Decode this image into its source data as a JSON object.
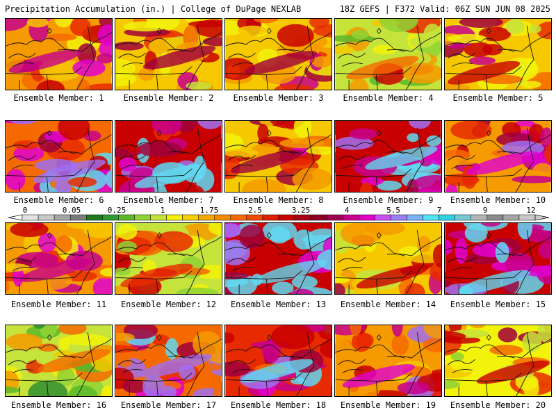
{
  "header": {
    "title": "Precipitation Accumulation (in.) | College of DuPage NEXLAB",
    "run_info": "18Z GEFS | F372 Valid: 06Z SUN JUN 08 2025"
  },
  "panels": [
    {
      "caption": "Ensemble Member: 1",
      "intensity": 0.55
    },
    {
      "caption": "Ensemble Member: 2",
      "intensity": 0.48
    },
    {
      "caption": "Ensemble Member: 3",
      "intensity": 0.5
    },
    {
      "caption": "Ensemble Member: 4",
      "intensity": 0.32
    },
    {
      "caption": "Ensemble Member: 5",
      "intensity": 0.45
    },
    {
      "caption": "Ensemble Member: 6",
      "intensity": 0.7
    },
    {
      "caption": "Ensemble Member: 7",
      "intensity": 0.8
    },
    {
      "caption": "Ensemble Member: 8",
      "intensity": 0.52
    },
    {
      "caption": "Ensemble Member: 9",
      "intensity": 0.82
    },
    {
      "caption": "Ensemble Member: 10",
      "intensity": 0.62
    },
    {
      "caption": "Ensemble Member: 11",
      "intensity": 0.55
    },
    {
      "caption": "Ensemble Member: 12",
      "intensity": 0.35
    },
    {
      "caption": "Ensemble Member: 13",
      "intensity": 0.85
    },
    {
      "caption": "Ensemble Member: 14",
      "intensity": 0.45
    },
    {
      "caption": "Ensemble Member: 15",
      "intensity": 0.88
    },
    {
      "caption": "Ensemble Member: 16",
      "intensity": 0.28
    },
    {
      "caption": "Ensemble Member: 17",
      "intensity": 0.68
    },
    {
      "caption": "Ensemble Member: 18",
      "intensity": 0.75
    },
    {
      "caption": "Ensemble Member: 19",
      "intensity": 0.6
    },
    {
      "caption": "Ensemble Member: 20",
      "intensity": 0.4
    }
  ],
  "colorbar": {
    "tick_labels": [
      "0",
      "0.05",
      "0.25",
      "1",
      "1.75",
      "2.5",
      "3.25",
      "4",
      "5.5",
      "7",
      "9",
      "12"
    ],
    "colors": [
      "#e2e2e2",
      "#c8c8c8",
      "#a6a6a6",
      "#7b7b7b",
      "#1e7a1e",
      "#2f9a2f",
      "#5ab82a",
      "#8fd236",
      "#c5e33a",
      "#f2f20a",
      "#f5d000",
      "#f5a800",
      "#f58a00",
      "#f56a00",
      "#f04a00",
      "#e01e00",
      "#c80000",
      "#a80014",
      "#8c0028",
      "#a00050",
      "#c8008c",
      "#e000c8",
      "#c850f0",
      "#9a80f5",
      "#78b4f5",
      "#50e6f5",
      "#30d2e2",
      "#78c8d2",
      "#b4b4b4",
      "#8c8c8c",
      "#a6a6a6",
      "#c8c8c8"
    ]
  }
}
